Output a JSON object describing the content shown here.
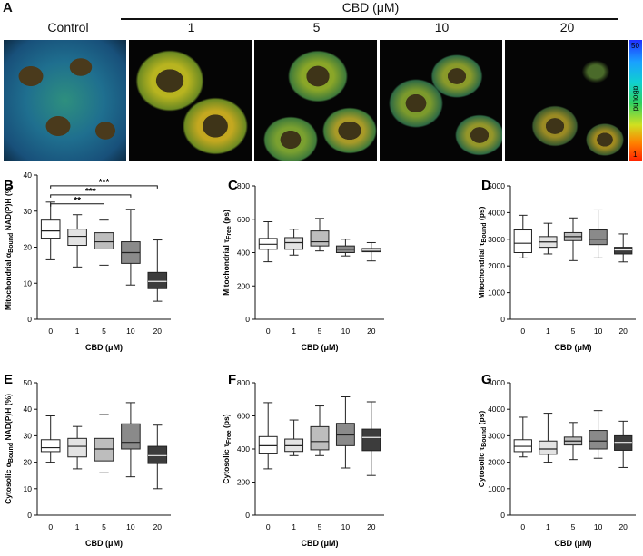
{
  "header": {
    "panel_letter": "A",
    "cbd_title": "CBD (μM)",
    "image_labels": [
      "Control",
      "1",
      "5",
      "10",
      "20"
    ]
  },
  "colorbar": {
    "top_label": "50",
    "bottom_label": "1",
    "axis_label": "αBound"
  },
  "colors": {
    "box_0": "#ffffff",
    "box_1": "#e3e3e3",
    "box_5": "#bdbdbd",
    "box_10": "#8a8a8a",
    "box_20": "#3c3c3c",
    "stroke": "#222222"
  },
  "chart_data": [
    {
      "panel": "B",
      "type": "box",
      "ylabel": "Mitochondrial αBound NAD(P)H (%)",
      "xlabel": "CBD (μM)",
      "categories": [
        "0",
        "1",
        "5",
        "10",
        "20"
      ],
      "ylim": [
        0,
        40
      ],
      "yticks": [
        0,
        10,
        20,
        30,
        40
      ],
      "boxes": [
        {
          "min": 16.5,
          "q1": 22.5,
          "median": 24.5,
          "q3": 27.5,
          "max": 32.5
        },
        {
          "min": 14.5,
          "q1": 20.5,
          "median": 23.0,
          "q3": 25.0,
          "max": 29.0
        },
        {
          "min": 15.0,
          "q1": 19.5,
          "median": 21.5,
          "q3": 24.0,
          "max": 27.5
        },
        {
          "min": 9.5,
          "q1": 15.5,
          "median": 18.5,
          "q3": 21.5,
          "max": 30.5
        },
        {
          "min": 5.0,
          "q1": 8.5,
          "median": 10.5,
          "q3": 13.0,
          "max": 22.0
        }
      ],
      "significance": [
        {
          "from": "0",
          "to": "20",
          "label": "***",
          "y": 37.0
        },
        {
          "from": "0",
          "to": "10",
          "label": "***",
          "y": 34.5
        },
        {
          "from": "0",
          "to": "5",
          "label": "**",
          "y": 32.0
        }
      ]
    },
    {
      "panel": "C",
      "type": "box",
      "ylabel": "Mitochondrial τFree (ps)",
      "xlabel": "CBD (μM)",
      "categories": [
        "0",
        "1",
        "5",
        "10",
        "20"
      ],
      "ylim": [
        0,
        800
      ],
      "yticks": [
        0,
        200,
        400,
        600,
        800
      ],
      "boxes": [
        {
          "min": 345,
          "q1": 420,
          "median": 450,
          "q3": 485,
          "max": 585
        },
        {
          "min": 385,
          "q1": 420,
          "median": 460,
          "q3": 490,
          "max": 540
        },
        {
          "min": 410,
          "q1": 440,
          "median": 465,
          "q3": 530,
          "max": 605
        },
        {
          "min": 380,
          "q1": 400,
          "median": 420,
          "q3": 440,
          "max": 480
        },
        {
          "min": 350,
          "q1": 405,
          "median": 415,
          "q3": 425,
          "max": 460
        }
      ]
    },
    {
      "panel": "D",
      "type": "box",
      "ylabel": "Mitochondrial τBound (ps)",
      "xlabel": "CBD (μM)",
      "categories": [
        "0",
        "1",
        "5",
        "10",
        "20"
      ],
      "ylim": [
        0,
        5000
      ],
      "yticks": [
        0,
        1000,
        2000,
        3000,
        4000,
        5000
      ],
      "boxes": [
        {
          "min": 2300,
          "q1": 2500,
          "median": 2850,
          "q3": 3350,
          "max": 3900
        },
        {
          "min": 2450,
          "q1": 2700,
          "median": 2900,
          "q3": 3100,
          "max": 3600
        },
        {
          "min": 2200,
          "q1": 2950,
          "median": 3100,
          "q3": 3250,
          "max": 3800
        },
        {
          "min": 2300,
          "q1": 2800,
          "median": 3000,
          "q3": 3350,
          "max": 4100
        },
        {
          "min": 2150,
          "q1": 2450,
          "median": 2600,
          "q3": 2700,
          "max": 3200
        }
      ]
    },
    {
      "panel": "E",
      "type": "box",
      "ylabel": "Cytosolic αBound NAD(P)H (%)",
      "xlabel": "CBD (μM)",
      "categories": [
        "0",
        "1",
        "5",
        "10",
        "20"
      ],
      "ylim": [
        0,
        50
      ],
      "yticks": [
        0,
        10,
        20,
        30,
        40,
        50
      ],
      "boxes": [
        {
          "min": 20.0,
          "q1": 24.0,
          "median": 25.5,
          "q3": 28.5,
          "max": 37.5
        },
        {
          "min": 17.5,
          "q1": 22.0,
          "median": 26.0,
          "q3": 29.0,
          "max": 33.5
        },
        {
          "min": 16.0,
          "q1": 20.5,
          "median": 25.0,
          "q3": 29.0,
          "max": 38.0
        },
        {
          "min": 14.5,
          "q1": 25.0,
          "median": 27.5,
          "q3": 34.5,
          "max": 42.5
        },
        {
          "min": 10.0,
          "q1": 19.5,
          "median": 22.5,
          "q3": 26.0,
          "max": 34.0
        }
      ]
    },
    {
      "panel": "F",
      "type": "box",
      "ylabel": "Cytosolic τFree (ps)",
      "xlabel": "CBD (μM)",
      "categories": [
        "0",
        "1",
        "5",
        "10",
        "20"
      ],
      "ylim": [
        0,
        800
      ],
      "yticks": [
        0,
        200,
        400,
        600,
        800
      ],
      "boxes": [
        {
          "min": 280,
          "q1": 375,
          "median": 420,
          "q3": 475,
          "max": 680
        },
        {
          "min": 360,
          "q1": 385,
          "median": 420,
          "q3": 460,
          "max": 575
        },
        {
          "min": 360,
          "q1": 395,
          "median": 445,
          "q3": 535,
          "max": 660
        },
        {
          "min": 285,
          "q1": 420,
          "median": 485,
          "q3": 555,
          "max": 715
        },
        {
          "min": 240,
          "q1": 390,
          "median": 470,
          "q3": 520,
          "max": 685
        }
      ]
    },
    {
      "panel": "G",
      "type": "box",
      "ylabel": "Cytosolic τBound (ps)",
      "xlabel": "CBD (μM)",
      "categories": [
        "0",
        "1",
        "5",
        "10",
        "20"
      ],
      "ylim": [
        0,
        5000
      ],
      "yticks": [
        0,
        1000,
        2000,
        3000,
        4000,
        5000
      ],
      "boxes": [
        {
          "min": 2200,
          "q1": 2400,
          "median": 2600,
          "q3": 2850,
          "max": 3700
        },
        {
          "min": 2000,
          "q1": 2300,
          "median": 2500,
          "q3": 2800,
          "max": 3850
        },
        {
          "min": 2100,
          "q1": 2650,
          "median": 2800,
          "q3": 2950,
          "max": 3500
        },
        {
          "min": 2150,
          "q1": 2500,
          "median": 2800,
          "q3": 3200,
          "max": 3950
        },
        {
          "min": 1800,
          "q1": 2450,
          "median": 2750,
          "q3": 3000,
          "max": 3550
        }
      ]
    }
  ]
}
